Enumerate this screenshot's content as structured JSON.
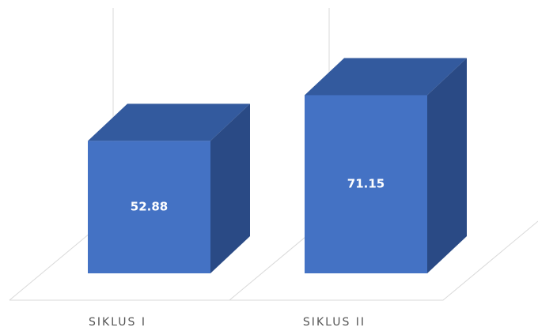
{
  "chart_data": {
    "type": "bar3d",
    "categories": [
      "SIKLUS I",
      "SIKLUS II"
    ],
    "values": [
      52.88,
      71.15
    ],
    "colors": {
      "front": "#4472c4",
      "top": "#335a9e",
      "side": "#2a4a85"
    }
  }
}
